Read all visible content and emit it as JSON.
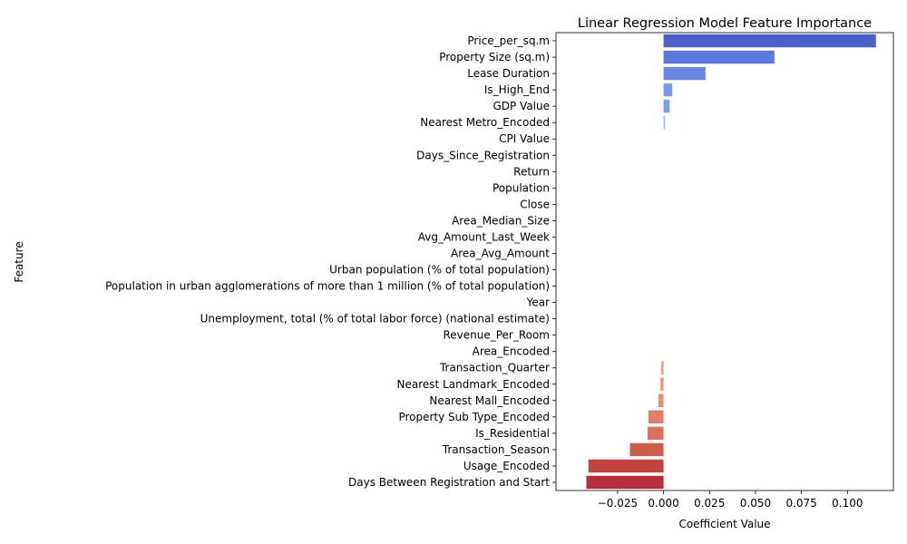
{
  "chart_data": {
    "type": "bar",
    "orientation": "horizontal",
    "title": "Linear Regression Model Feature Importance",
    "xlabel": "Coefficient Value",
    "ylabel": "Feature",
    "xlim": [
      -0.0585,
      0.125
    ],
    "xticks": [
      -0.025,
      0.0,
      0.025,
      0.05,
      0.075,
      0.1
    ],
    "xtick_labels": [
      "−0.025",
      "0.000",
      "0.025",
      "0.050",
      "0.075",
      "0.100"
    ],
    "grid": false,
    "palette": "coolwarm",
    "categories": [
      "Price_per_sq.m",
      "Property Size (sq.m)",
      "Lease Duration",
      "Is_High_End",
      "GDP Value",
      "Nearest Metro_Encoded",
      "CPI Value",
      "Days_Since_Registration",
      "Return",
      "Population",
      "Close",
      "Area_Median_Size",
      "Avg_Amount_Last_Week",
      "Area_Avg_Amount",
      "Urban population (% of total population)",
      "Population in urban agglomerations of more than 1 million (% of total population)",
      "Year",
      "Unemployment, total (% of total labor force) (national estimate)",
      "Revenue_Per_Room",
      "Area_Encoded",
      "Transaction_Quarter",
      "Nearest Landmark_Encoded",
      "Nearest Mall_Encoded",
      "Property Sub Type_Encoded",
      "Is_Residential",
      "Transaction_Season",
      "Usage_Encoded",
      "Days Between Registration and Start"
    ],
    "values": [
      0.1155,
      0.0603,
      0.0228,
      0.0047,
      0.0033,
      0.0008,
      0.0,
      0.0,
      0.0,
      0.0,
      0.0,
      0.0,
      0.0,
      0.0,
      0.0,
      0.0,
      0.0,
      0.0,
      0.0,
      0.0,
      -0.0013,
      -0.0017,
      -0.0028,
      -0.0083,
      -0.0087,
      -0.0183,
      -0.0409,
      -0.042
    ],
    "colors": [
      "#4b5fc8",
      "#5d78dc",
      "#6a84e2",
      "#7b97ee",
      "#7f9cf0",
      "#9cb8f9",
      "#b1cbfc",
      "#bfd3fb",
      "#cbd8f0",
      "#d3dbe7",
      "#dcdddd",
      "#e3d9d1",
      "#e9d4c6",
      "#edcbb8",
      "#f0c1a8",
      "#f2b89b",
      "#f3ad8c",
      "#f2a07e",
      "#ee9372",
      "#e98667",
      "#e79b83",
      "#e6977f",
      "#e48f77",
      "#de806b",
      "#d8755f",
      "#cc5e4d",
      "#c0433f",
      "#b5303a"
    ]
  }
}
